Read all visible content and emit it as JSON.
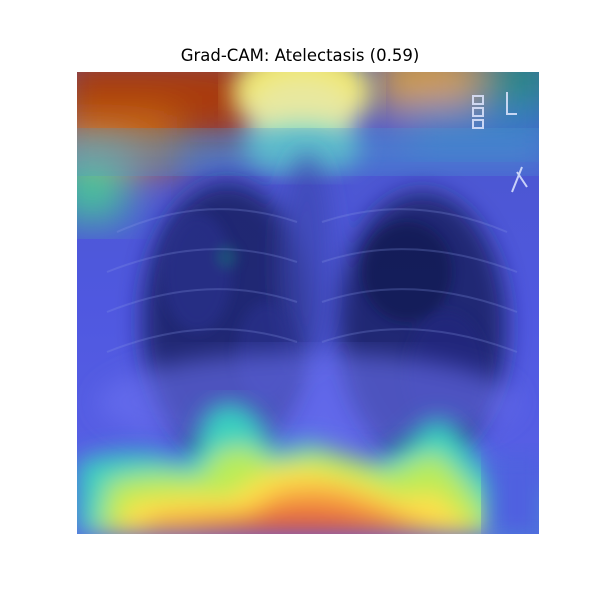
{
  "figure": {
    "title": "Grad-CAM: Atelectasis (0.59)",
    "overlay_colormap": "jet",
    "colors": {
      "background_xray_dark": "#1a1f3a",
      "lung_field_dark": "#141a55",
      "cam_low": "#3b3ed8",
      "cam_mid": "#2fd6c8",
      "cam_high": "#ffe23a",
      "cam_peak": "#e8503a",
      "top_left_corner": "#a83a12",
      "top_right_corner": "#2a8a7a"
    }
  }
}
